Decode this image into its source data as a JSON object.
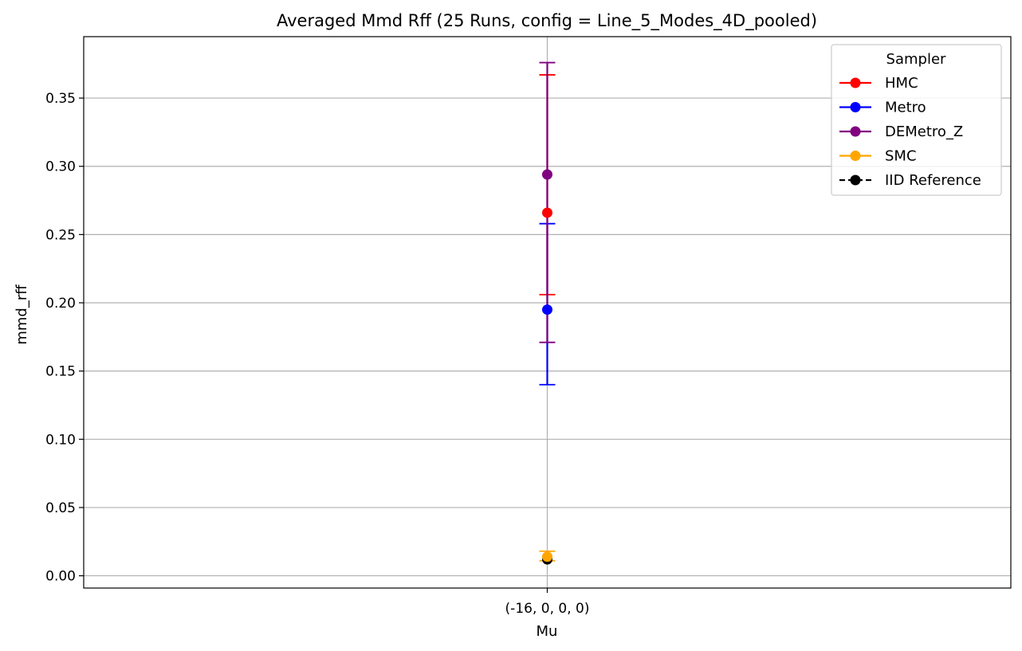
{
  "chart_data": {
    "type": "scatter",
    "title": "Averaged Mmd Rff (25 Runs, config = Line_5_Modes_4D_pooled)",
    "xlabel": "Mu",
    "ylabel": "mmd_rff",
    "categories": [
      "(-16, 0, 0, 0)"
    ],
    "ylim": [
      -0.009,
      0.395
    ],
    "yticks": [
      0.0,
      0.05,
      0.1,
      0.15,
      0.2,
      0.25,
      0.3,
      0.35
    ],
    "ytick_labels": [
      "0.00",
      "0.05",
      "0.10",
      "0.15",
      "0.20",
      "0.25",
      "0.30",
      "0.35"
    ],
    "grid": true,
    "legend": {
      "title": "Sampler",
      "placement": "top-right"
    },
    "series": [
      {
        "name": "HMC",
        "color": "#ff0000",
        "values": [
          0.266
        ],
        "err_low": [
          0.206
        ],
        "err_high": [
          0.367
        ],
        "style": "solid"
      },
      {
        "name": "Metro",
        "color": "#0000ff",
        "values": [
          0.195
        ],
        "err_low": [
          0.14
        ],
        "err_high": [
          0.258
        ],
        "style": "solid"
      },
      {
        "name": "DEMetro_Z",
        "color": "#800080",
        "values": [
          0.294
        ],
        "err_low": [
          0.171
        ],
        "err_high": [
          0.376
        ],
        "style": "solid"
      },
      {
        "name": "SMC",
        "color": "#ffa500",
        "values": [
          0.014
        ],
        "err_low": [
          0.011
        ],
        "err_high": [
          0.018
        ],
        "style": "solid"
      },
      {
        "name": "IID Reference",
        "color": "#000000",
        "values": [
          0.012
        ],
        "err_low": [
          0.012
        ],
        "err_high": [
          0.012
        ],
        "style": "dashed"
      }
    ]
  }
}
